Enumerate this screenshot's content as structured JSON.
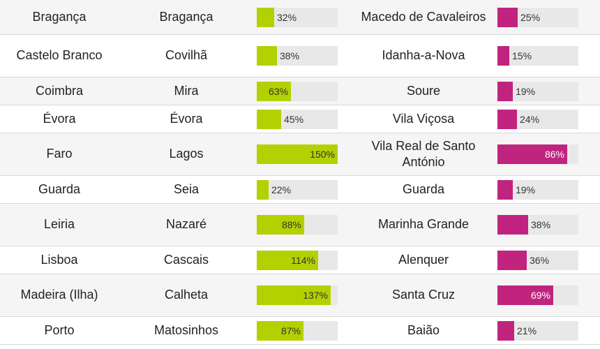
{
  "colors": {
    "bar_a": "#b3d100",
    "bar_b": "#c0247e",
    "track": "#e8e8e8",
    "row_shade": "#f5f5f5"
  },
  "rows": [
    {
      "district": "Bragança",
      "muni_a": "Bragança",
      "pct_a": "32%",
      "muni_b": "Macedo de Cavaleiros",
      "pct_b": "25%"
    },
    {
      "district": "Castelo Branco",
      "muni_a": "Covilhã",
      "pct_a": "38%",
      "muni_b": "Idanha-a-Nova",
      "pct_b": "15%"
    },
    {
      "district": "Coimbra",
      "muni_a": "Mira",
      "pct_a": "63%",
      "muni_b": "Soure",
      "pct_b": "19%"
    },
    {
      "district": "Évora",
      "muni_a": "Évora",
      "pct_a": "45%",
      "muni_b": "Vila Viçosa",
      "pct_b": "24%"
    },
    {
      "district": "Faro",
      "muni_a": "Lagos",
      "pct_a": "150%",
      "muni_b": "Vila Real de Santo António",
      "pct_b": "86%"
    },
    {
      "district": "Guarda",
      "muni_a": "Seia",
      "pct_a": "22%",
      "muni_b": "Guarda",
      "pct_b": "19%"
    },
    {
      "district": "Leiria",
      "muni_a": "Nazaré",
      "pct_a": "88%",
      "muni_b": "Marinha Grande",
      "pct_b": "38%"
    },
    {
      "district": "Lisboa",
      "muni_a": "Cascais",
      "pct_a": "114%",
      "muni_b": "Alenquer",
      "pct_b": "36%"
    },
    {
      "district": "Madeira (Ilha)",
      "muni_a": "Calheta",
      "pct_a": "137%",
      "muni_b": "Santa Cruz",
      "pct_b": "69%"
    },
    {
      "district": "Porto",
      "muni_a": "Matosinhos",
      "pct_a": "87%",
      "muni_b": "Baião",
      "pct_b": "21%"
    }
  ]
}
